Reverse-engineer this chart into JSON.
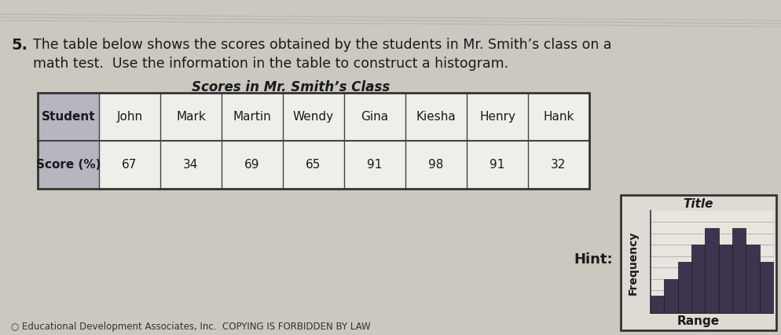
{
  "question_number": "5.",
  "question_line1": "The table below shows the scores obtained by the students in Mr. Smith’s class on a",
  "question_line2": "math test.  Use the information in the table to construct a histogram.",
  "table_title": "Scores in Mr. Smith’s Class",
  "table_headers": [
    "Student",
    "John",
    "Mark",
    "Martin",
    "Wendy",
    "Gina",
    "Kiesha",
    "Henry",
    "Hank"
  ],
  "table_row_label": "Score (%)",
  "table_scores": [
    "67",
    "34",
    "69",
    "65",
    "91",
    "98",
    "91",
    "32"
  ],
  "hint_label": "Hint:",
  "hint_title": "Title",
  "hint_xlabel": "Range",
  "hint_ylabel": "Frequency",
  "hint_bars": [
    1,
    2,
    3,
    4,
    5,
    4,
    5,
    4,
    3
  ],
  "footer_text": "○ Educational Development Associates, Inc.  COPYING IS FORBIDDEN BY LAW",
  "bg_color": "#cbc8c0",
  "table_header_bg": "#d0ccd8",
  "table_white_bg": "#f0eeea",
  "bar_color": "#3d3450",
  "hint_box_bg": "#dedad4",
  "hint_plot_bg": "#e8e5de",
  "grid_color": "#b0aaa8",
  "text_color": "#1a1a1a",
  "header_shade": "#b8b4c0"
}
